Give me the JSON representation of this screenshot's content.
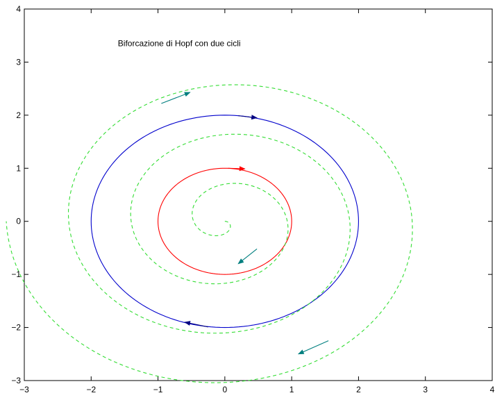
{
  "chart_data": {
    "type": "line",
    "title": "",
    "xlabel": "",
    "ylabel": "",
    "xlim": [
      -3,
      4
    ],
    "ylim": [
      -3,
      4
    ],
    "x_ticks": [
      -3,
      -2,
      -1,
      0,
      1,
      2,
      3,
      4
    ],
    "y_ticks": [
      -3,
      -2,
      -1,
      0,
      1,
      2,
      3,
      4
    ],
    "x_tick_labels": [
      "−3",
      "−2",
      "−1",
      "0",
      "1",
      "2",
      "3",
      "4"
    ],
    "y_tick_labels": [
      "−3",
      "−2",
      "−1",
      "0",
      "1",
      "2",
      "3",
      "4"
    ],
    "grid": false,
    "legend": "none",
    "annotations": [
      {
        "text": "Biforcazione di Hopf con due cicli",
        "x": -1.6,
        "y": 3.35
      }
    ],
    "series": [
      {
        "style": "solid",
        "color": "#ff0000",
        "shape": "circle",
        "radius": 1.0,
        "center": [
          0,
          0
        ],
        "arrow": {
          "from": [
            0.05,
            1.0
          ],
          "to": [
            0.3,
            0.99
          ]
        }
      },
      {
        "style": "solid",
        "color": "#0000cc",
        "shape": "circle",
        "radius": 2.0,
        "center": [
          0,
          0
        ],
        "arrows": [
          {
            "from": [
              0.2,
              1.99
            ],
            "to": [
              0.48,
              1.95
            ]
          },
          {
            "from": [
              -0.25,
              -1.99
            ],
            "to": [
              -0.6,
              -1.9
            ]
          }
        ]
      },
      {
        "style": "dashed",
        "color": "#33dd33",
        "shape": "spiral",
        "r_start": 0.0,
        "r_end": 3.27,
        "turns": 3.5,
        "points": [
          [
            0,
            0
          ],
          [
            0.2,
            0.2
          ],
          [
            0.5,
            0
          ],
          [
            0.3,
            -0.55
          ],
          [
            0,
            -0.6
          ],
          [
            -0.6,
            -0.4
          ],
          [
            -0.9,
            0
          ],
          [
            -0.6,
            0.8
          ],
          [
            0,
            1.0
          ],
          [
            0.8,
            0.8
          ],
          [
            1.4,
            0
          ],
          [
            0.9,
            -1.1
          ],
          [
            0,
            -1.45
          ],
          [
            -1.1,
            -1.1
          ],
          [
            -1.85,
            0
          ],
          [
            -1.3,
            1.5
          ],
          [
            0,
            1.82
          ],
          [
            1.3,
            1.4
          ],
          [
            2.3,
            0
          ],
          [
            1.6,
            -1.8
          ],
          [
            0,
            -2.35
          ],
          [
            -1.7,
            -1.6
          ],
          [
            -2.2,
            0
          ],
          [
            -1.6,
            1.9
          ],
          [
            0,
            2.45
          ],
          [
            1.8,
            1.85
          ],
          [
            2.9,
            0
          ],
          [
            2.0,
            -2.2
          ],
          [
            0,
            -2.78
          ],
          [
            -2.2,
            -2.0
          ],
          [
            -2.9,
            0
          ],
          [
            -2.1,
            2.4
          ],
          [
            0,
            3.1
          ],
          [
            2.3,
            2.4
          ],
          [
            3.27,
            0
          ]
        ],
        "arrows": [
          {
            "from": [
              -0.95,
              2.22
            ],
            "to": [
              -0.52,
              2.43
            ]
          },
          {
            "from": [
              0.48,
              -0.52
            ],
            "to": [
              0.2,
              -0.8
            ]
          },
          {
            "from": [
              1.55,
              -2.25
            ],
            "to": [
              1.1,
              -2.5
            ]
          }
        ]
      }
    ]
  }
}
